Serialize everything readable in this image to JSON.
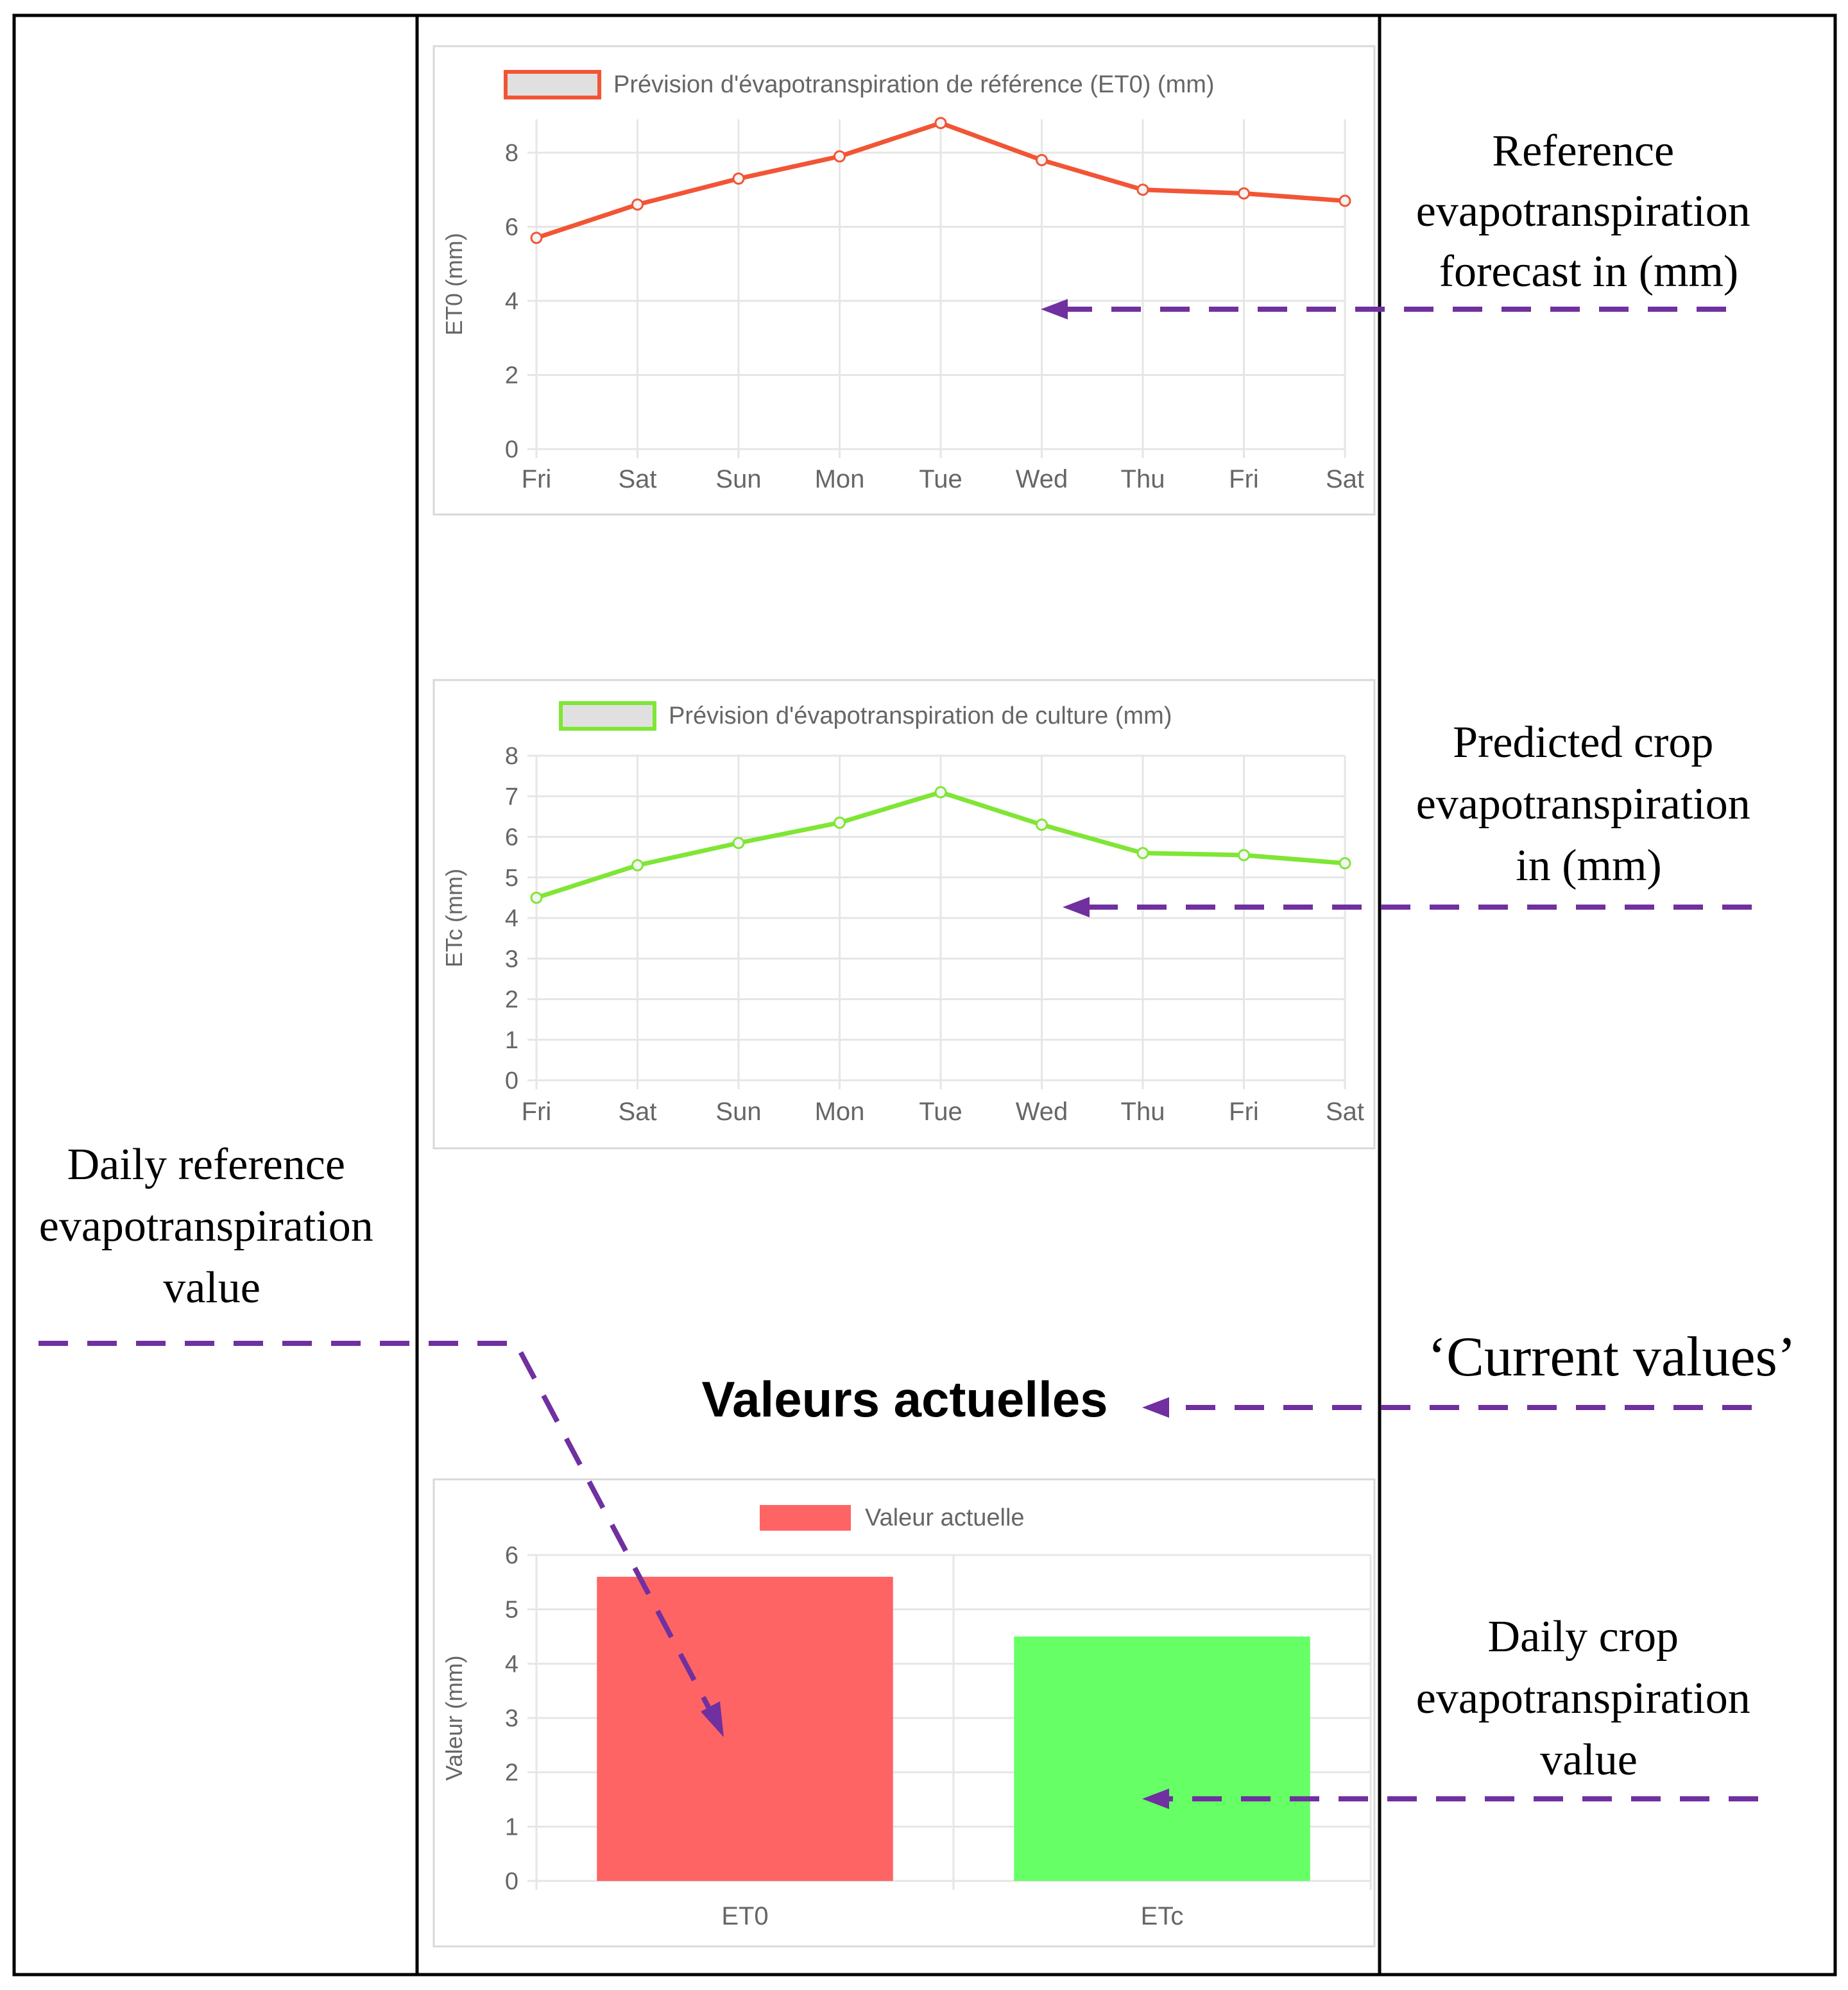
{
  "colors": {
    "et0_line": "#f25535",
    "etc_line": "#7fe635",
    "bar_et0": "#ff6464",
    "bar_etc": "#66ff66",
    "arrow": "#7030a0",
    "grid": "#e6e6e6",
    "legend_fill": "#e0e0e0"
  },
  "annotations": {
    "reference_forecast": [
      "Reference",
      "evapotranspiration",
      "forecast in (mm)"
    ],
    "crop_forecast": [
      "Predicted crop",
      "evapotranspiration",
      "in (mm)"
    ],
    "daily_reference": [
      "Daily reference",
      "evapotranspiration",
      "value"
    ],
    "current_values": "‘Current values’",
    "daily_crop": [
      "Daily crop",
      "evapotranspiration",
      "value"
    ]
  },
  "section_title": "Valeurs actuelles",
  "chart_data": [
    {
      "type": "line",
      "legend": "Prévision d'évapotranspiration de référence (ET0) (mm)",
      "ylabel": "ET0 (mm)",
      "categories": [
        "Fri",
        "Sat",
        "Sun",
        "Mon",
        "Tue",
        "Wed",
        "Thu",
        "Fri",
        "Sat"
      ],
      "values": [
        5.7,
        6.6,
        7.3,
        7.9,
        8.8,
        7.8,
        7.0,
        6.9,
        6.7
      ],
      "yticks": [
        0,
        2,
        4,
        6,
        8
      ],
      "ylim": [
        0,
        8.9
      ],
      "color": "#f25535"
    },
    {
      "type": "line",
      "legend": "Prévision d'évapotranspiration de culture (mm)",
      "ylabel": "ETc (mm)",
      "categories": [
        "Fri",
        "Sat",
        "Sun",
        "Mon",
        "Tue",
        "Wed",
        "Thu",
        "Fri",
        "Sat"
      ],
      "values": [
        4.5,
        5.3,
        5.85,
        6.35,
        7.1,
        6.3,
        5.6,
        5.55,
        5.35
      ],
      "yticks": [
        0,
        1,
        2,
        3,
        4,
        5,
        6,
        7,
        8
      ],
      "ylim": [
        0,
        8
      ],
      "color": "#7fe635"
    },
    {
      "type": "bar",
      "legend": "Valeur actuelle",
      "ylabel": "Valeur (mm)",
      "categories": [
        "ET0",
        "ETc"
      ],
      "values": [
        5.6,
        4.5
      ],
      "yticks": [
        0,
        1,
        2,
        3,
        4,
        5,
        6
      ],
      "ylim": [
        0,
        6
      ],
      "colors": [
        "#ff6464",
        "#66ff66"
      ]
    }
  ]
}
